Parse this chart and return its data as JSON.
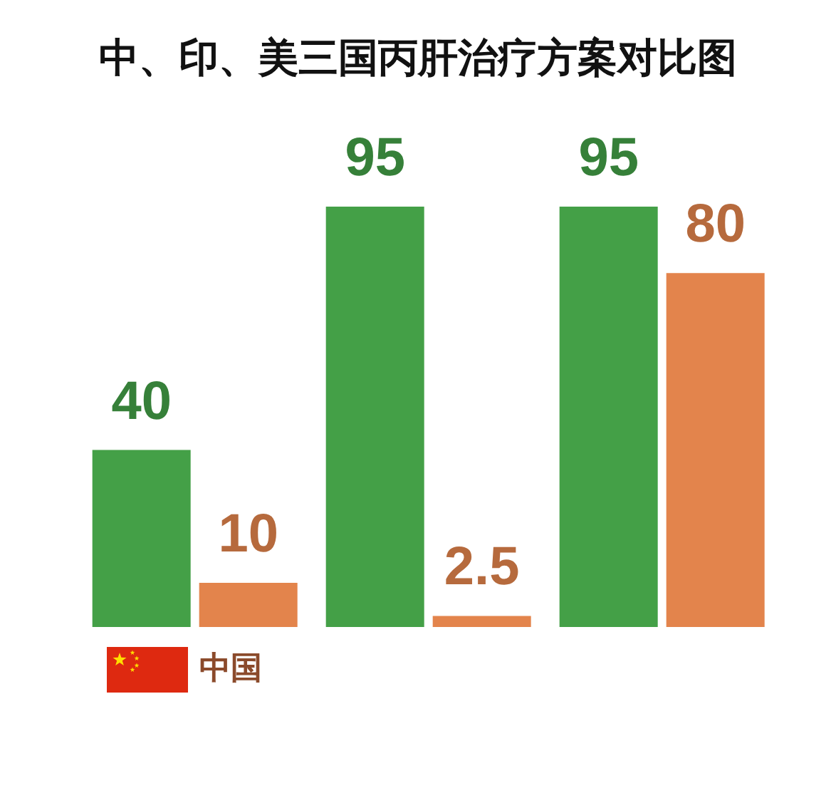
{
  "chart_data": {
    "type": "bar",
    "title": "中、印、美三国丙肝治疗方案对比图",
    "categories": [
      "中国",
      null,
      null
    ],
    "series": [
      {
        "color": "#44a047",
        "values": [
          40,
          95,
          95
        ]
      },
      {
        "color": "#e3844c",
        "values": [
          10,
          2.5,
          80
        ]
      }
    ],
    "data_labels": true
  }
}
